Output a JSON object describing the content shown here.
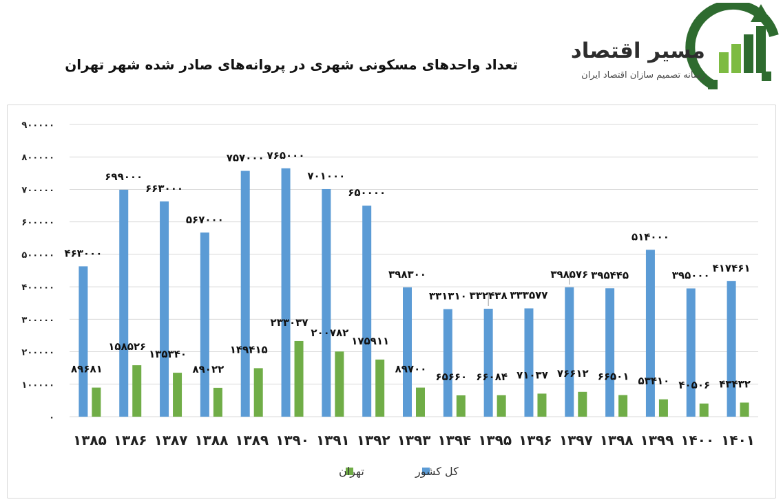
{
  "page": {
    "title": "تعداد واحدهای مسکونی شهری در پروانه‌های صادر شده شهر تهران"
  },
  "logo": {
    "name": "مسیر اقتصاد",
    "tagline": "رسانه تصمیم سازان اقتصاد ایران",
    "colors": {
      "green": "#2e6b2f",
      "light_green": "#7dbb42",
      "teal": "#1e7b8a"
    }
  },
  "chart_data": {
    "type": "bar",
    "title": "",
    "xlabel": "",
    "ylabel": "",
    "ylim": [
      0,
      900000
    ],
    "yticks": [
      0,
      100000,
      200000,
      300000,
      400000,
      500000,
      600000,
      700000,
      800000,
      900000
    ],
    "ytick_labels": [
      "۰",
      "۱۰۰۰۰۰",
      "۲۰۰۰۰۰",
      "۳۰۰۰۰۰",
      "۴۰۰۰۰۰",
      "۵۰۰۰۰۰",
      "۶۰۰۰۰۰",
      "۷۰۰۰۰۰",
      "۸۰۰۰۰۰",
      "۹۰۰۰۰۰"
    ],
    "grid": true,
    "legend_position": "bottom",
    "categories": [
      "۱۳۸۵",
      "۱۳۸۶",
      "۱۳۸۷",
      "۱۳۸۸",
      "۱۳۸۹",
      "۱۳۹۰",
      "۱۳۹۱",
      "۱۳۹۲",
      "۱۳۹۳",
      "۱۳۹۴",
      "۱۳۹۵",
      "۱۳۹۶",
      "۱۳۹۷",
      "۱۳۹۸",
      "۱۳۹۹",
      "۱۴۰۰",
      "۱۴۰۱"
    ],
    "series": [
      {
        "name": "کل کشور",
        "color": "#5b9bd5",
        "values": [
          463000,
          699000,
          663000,
          567000,
          757000,
          765000,
          701000,
          650000,
          398300,
          331310,
          332438,
          333577,
          398576,
          395445,
          514000,
          395000,
          417461
        ],
        "labels": [
          "۴۶۳۰۰۰",
          "۶۹۹۰۰۰",
          "۶۶۳۰۰۰",
          "۵۶۷۰۰۰",
          "۷۵۷۰۰۰",
          "۷۶۵۰۰۰",
          "۷۰۱۰۰۰",
          "۶۵۰۰۰۰",
          "۳۹۸۳۰۰",
          "۳۳۱۳۱۰",
          "۳۳۲۴۳۸",
          "۳۳۳۵۷۷",
          "۳۹۸۵۷۶",
          "۳۹۵۴۴۵",
          "۵۱۴۰۰۰",
          "۳۹۵۰۰۰",
          "۴۱۷۴۶۱"
        ]
      },
      {
        "name": "تهران",
        "color": "#70ad47",
        "values": [
          89681,
          158526,
          135340,
          89022,
          149415,
          233037,
          200782,
          175911,
          89700,
          65660,
          66084,
          71037,
          76612,
          66501,
          53410,
          40506,
          43432
        ],
        "labels": [
          "۸۹۶۸۱",
          "۱۵۸۵۲۶",
          "۱۳۵۳۴۰",
          "۸۹۰۲۲",
          "۱۴۹۴۱۵",
          "۲۳۳۰۳۷",
          "۲۰۰۷۸۲",
          "۱۷۵۹۱۱",
          "۸۹۷۰۰",
          "۶۵۶۶۰",
          "۶۶۰۸۴",
          "۷۱۰۳۷",
          "۷۶۶۱۲",
          "۶۶۵۰۱",
          "۵۳۴۱۰",
          "۴۰۵۰۶",
          "۴۳۴۳۲"
        ]
      }
    ]
  }
}
